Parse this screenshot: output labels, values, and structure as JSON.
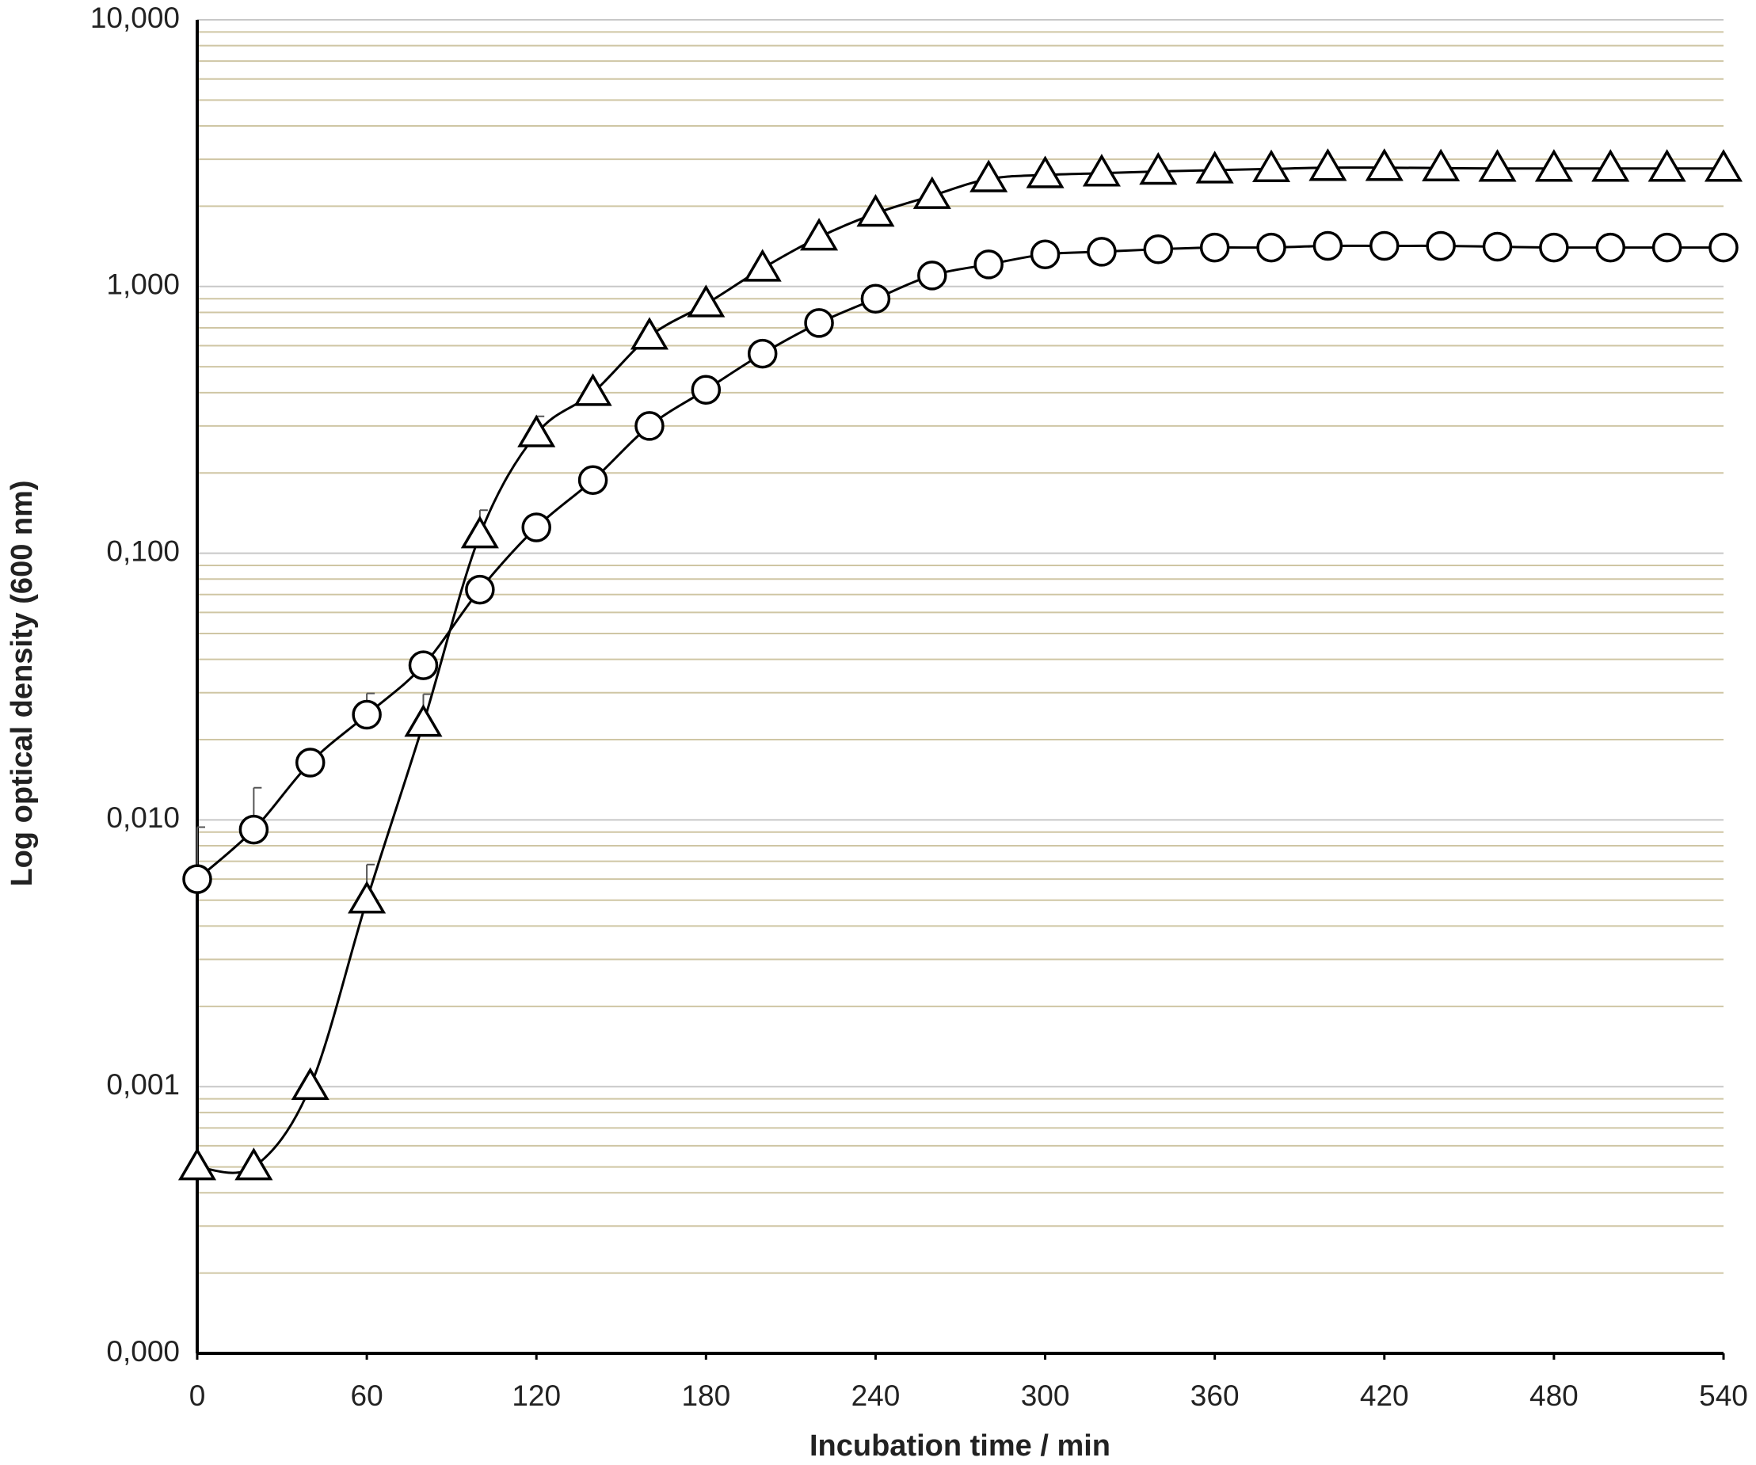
{
  "chart_data": {
    "type": "line",
    "x_label": "Incubation time / min",
    "y_label": "Log optical density (600 nm)",
    "y_scale": "log",
    "grid": true,
    "x": [
      0,
      20,
      40,
      60,
      80,
      100,
      120,
      140,
      160,
      180,
      200,
      220,
      240,
      260,
      280,
      300,
      320,
      340,
      360,
      380,
      400,
      420,
      440,
      460,
      480,
      500,
      520,
      540
    ],
    "xlim": [
      0,
      540
    ],
    "xticks": [
      0,
      60,
      120,
      180,
      240,
      300,
      360,
      420,
      480,
      540
    ],
    "ylim": [
      0.0001,
      10
    ],
    "yticks": [
      {
        "value": 0.0001,
        "label": "0,000"
      },
      {
        "value": 0.001,
        "label": "0,001"
      },
      {
        "value": 0.01,
        "label": "0,010"
      },
      {
        "value": 0.1,
        "label": "0,100"
      },
      {
        "value": 1,
        "label": "1,000"
      },
      {
        "value": 10,
        "label": "10,000"
      }
    ],
    "series": [
      {
        "marker": "circle",
        "color": "#000000",
        "values": [
          0.006,
          0.0092,
          0.0164,
          0.0248,
          0.038,
          0.073,
          0.125,
          0.188,
          0.3,
          0.41,
          0.56,
          0.73,
          0.9,
          1.1,
          1.21,
          1.32,
          1.35,
          1.38,
          1.4,
          1.4,
          1.42,
          1.42,
          1.42,
          1.41,
          1.4,
          1.4,
          1.4,
          1.4
        ],
        "errors": [
          0.0034,
          0.004,
          0,
          0.005,
          0,
          0,
          0,
          0,
          0,
          0,
          0,
          0,
          0,
          0,
          0,
          0,
          0,
          0,
          0,
          0,
          0,
          0,
          0,
          0,
          0,
          0,
          0,
          0
        ]
      },
      {
        "marker": "triangle",
        "color": "#000000",
        "values": [
          0.0005,
          0.0005,
          0.001,
          0.005,
          0.023,
          0.117,
          0.28,
          0.4,
          0.65,
          0.86,
          1.17,
          1.53,
          1.88,
          2.19,
          2.53,
          2.62,
          2.66,
          2.7,
          2.73,
          2.76,
          2.79,
          2.79,
          2.78,
          2.77,
          2.77,
          2.77,
          2.77,
          2.77
        ],
        "errors": [
          0,
          0,
          0,
          0.0018,
          0.0066,
          0.028,
          0.046,
          0,
          0,
          0,
          0,
          0,
          0,
          0,
          0,
          0,
          0,
          0,
          0,
          0,
          0,
          0,
          0,
          0,
          0,
          0,
          0,
          0
        ]
      }
    ]
  }
}
